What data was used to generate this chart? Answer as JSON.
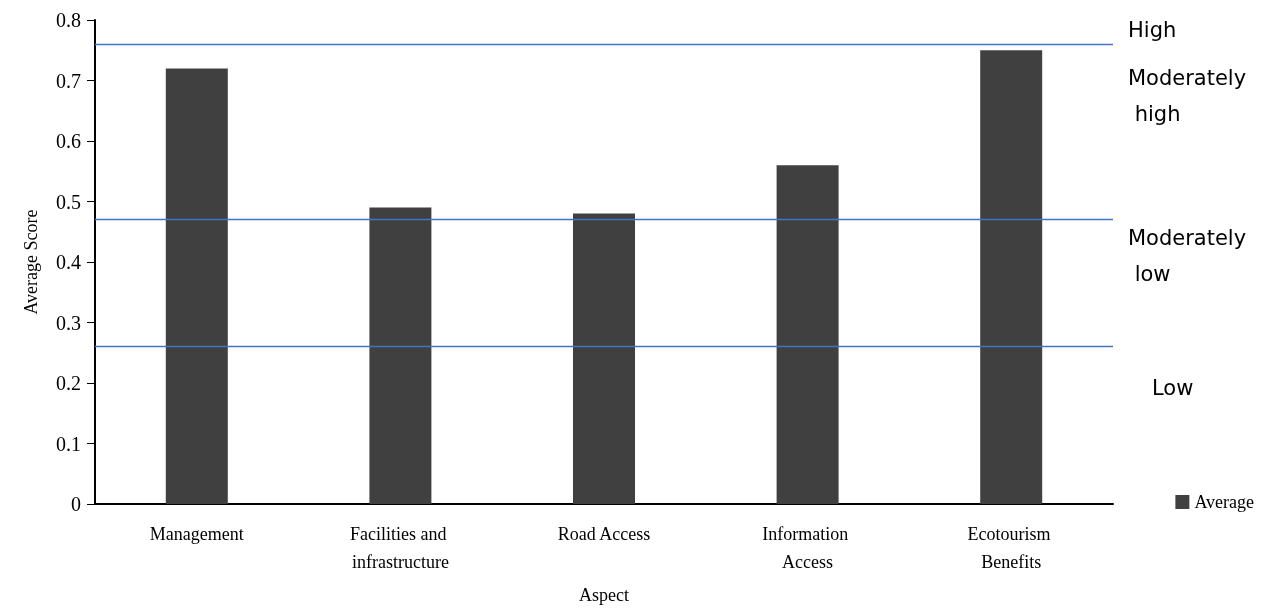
{
  "chart_data": {
    "type": "bar",
    "categories": [
      "Management",
      "Facilities and infrastructure",
      "Road Access",
      "Information Access",
      "Ecotourism Benefits"
    ],
    "series": [
      {
        "name": "Average",
        "color": "#404040",
        "values": [
          0.72,
          0.49,
          0.48,
          0.56,
          0.75
        ]
      }
    ],
    "xlabel": "Aspect",
    "ylabel": "Average Score",
    "ylim": [
      0,
      0.8
    ],
    "yticks": [
      0,
      0.1,
      0.2,
      0.3,
      0.4,
      0.5,
      0.6,
      0.7,
      0.8
    ],
    "ref_lines": [
      {
        "axis": "y",
        "value": 0.76,
        "color": "#4472c4",
        "line_style": "solid"
      },
      {
        "axis": "y",
        "value": 0.47,
        "color": "#4472c4",
        "line_style": "solid"
      },
      {
        "axis": "y",
        "value": 0.26,
        "color": "#4472c4",
        "line_style": "solid"
      }
    ],
    "annotations": [
      "High",
      "Moderately high",
      "Moderately low",
      "Low"
    ],
    "grid": false,
    "legend": "right"
  }
}
